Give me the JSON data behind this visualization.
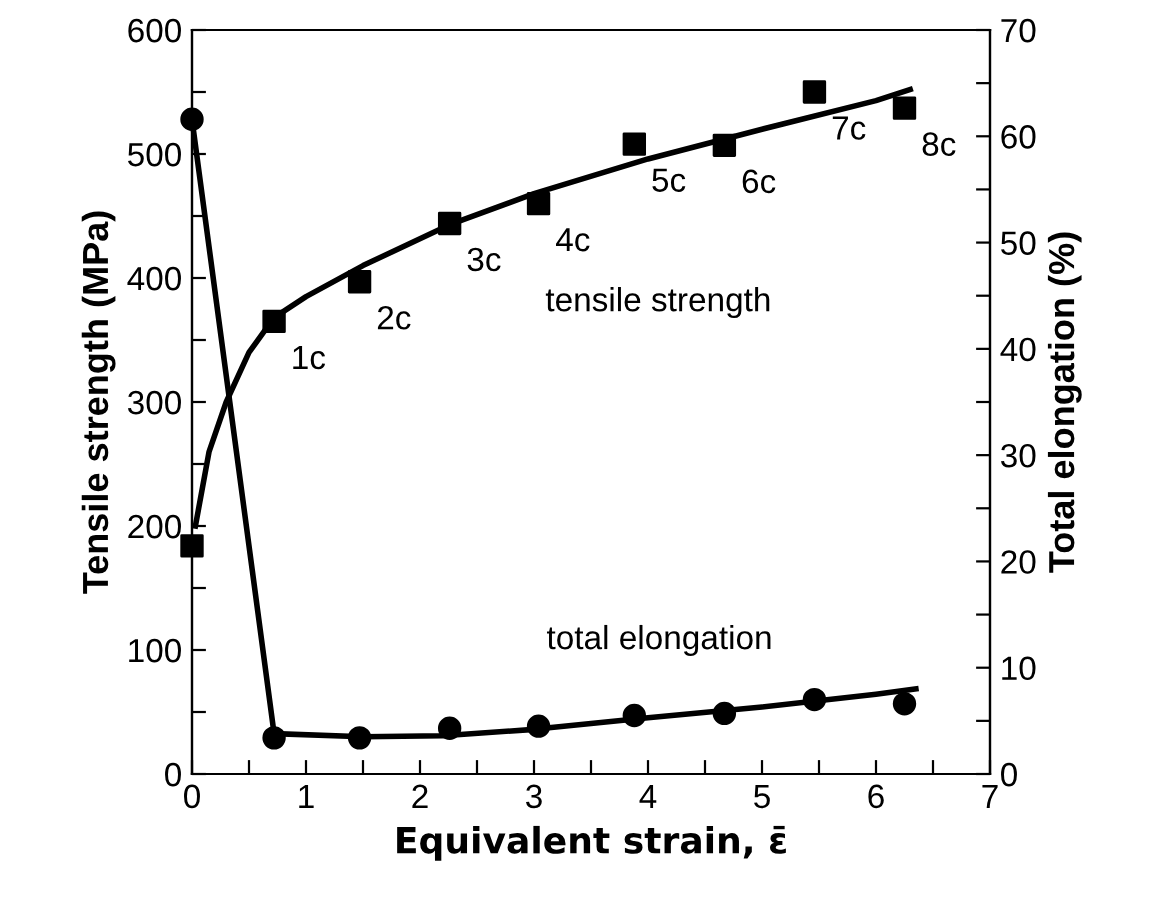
{
  "chart_data": {
    "type": "scatter",
    "xlabel": "Equivalent strain, ε̄",
    "ylabel": "Tensile strength (MPa)",
    "y2label": "Total elongation (%)",
    "series": [
      {
        "marker": "square",
        "color": "#000000",
        "x": [
          0,
          0.72,
          1.47,
          2.26,
          3.04,
          3.88,
          4.67,
          5.46,
          6.25
        ],
        "values": [
          184,
          365,
          397,
          444,
          460,
          508,
          507,
          550,
          537
        ]
      },
      {
        "type": "line",
        "name": "tensile strength",
        "marker": "none",
        "color": "#000000",
        "x": [
          0.03,
          0.15,
          0.3,
          0.5,
          0.72,
          1.0,
          1.5,
          2.26,
          3.0,
          4.0,
          5.0,
          6.0,
          6.3
        ],
        "values": [
          200,
          260,
          300,
          340,
          368,
          385,
          410,
          443,
          468,
          496,
          520,
          543,
          552
        ]
      },
      {
        "marker": "circle",
        "axis": "y2",
        "color": "#000000",
        "x": [
          0,
          0.72,
          1.47,
          2.26,
          3.04,
          3.88,
          4.67,
          5.46,
          6.25
        ],
        "values": [
          61.6,
          3.4,
          3.4,
          4.3,
          4.5,
          5.5,
          5.7,
          7.0,
          6.6
        ]
      },
      {
        "type": "line",
        "name": "total elongation",
        "marker": "none",
        "axis": "y2",
        "color": "#000000",
        "x": [
          0,
          0.72,
          1.5,
          2.2,
          3.0,
          4.0,
          5.0,
          6.0,
          6.35
        ],
        "values": [
          61.6,
          3.8,
          3.5,
          3.6,
          4.2,
          5.3,
          6.3,
          7.5,
          8.0
        ]
      }
    ],
    "annotations": [
      {
        "text": "1c",
        "x": 0.72,
        "y": 365
      },
      {
        "text": "2c",
        "x": 1.47,
        "y": 397
      },
      {
        "text": "3c",
        "x": 2.26,
        "y": 444
      },
      {
        "text": "4c",
        "x": 3.04,
        "y": 460
      },
      {
        "text": "5c",
        "x": 3.88,
        "y": 508
      },
      {
        "text": "6c",
        "x": 4.67,
        "y": 507
      },
      {
        "text": "7c",
        "x": 5.46,
        "y": 550
      },
      {
        "text": "8c",
        "x": 6.25,
        "y": 537
      }
    ],
    "xlim": [
      0,
      7
    ],
    "xticks": [
      0,
      {
        "value": 0.5,
        "label": null
      },
      1,
      {
        "value": 1.5,
        "label": null
      },
      2,
      {
        "value": 2.5,
        "label": null
      },
      3,
      {
        "value": 3.5,
        "label": null
      },
      4,
      {
        "value": 4.5,
        "label": null
      },
      5,
      {
        "value": 5.5,
        "label": null
      },
      6,
      {
        "value": 6.5,
        "label": null
      },
      7
    ],
    "ylim": [
      0,
      600
    ],
    "yticks": [
      0,
      {
        "value": 50,
        "label": null
      },
      100,
      {
        "value": 150,
        "label": null
      },
      200,
      {
        "value": 250,
        "label": null
      },
      300,
      {
        "value": 350,
        "label": null
      },
      400,
      {
        "value": 450,
        "label": null
      },
      500,
      {
        "value": 550,
        "label": null
      },
      600
    ],
    "y2lim": [
      0,
      70
    ],
    "y2ticks": [
      0,
      {
        "value": 5,
        "label": null
      },
      10,
      {
        "value": 15,
        "label": null
      },
      20,
      {
        "value": 25,
        "label": null
      },
      30,
      {
        "value": 35,
        "label": null
      },
      40,
      {
        "value": 45,
        "label": null
      },
      50,
      {
        "value": 55,
        "label": null
      },
      60,
      {
        "value": 65,
        "label": null
      },
      70
    ],
    "grid": false,
    "legend": false
  }
}
